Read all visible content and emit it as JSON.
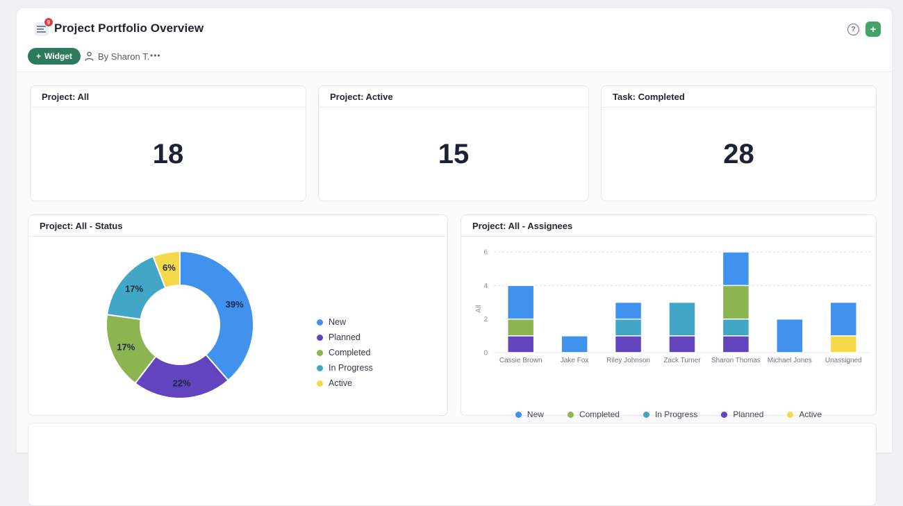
{
  "header": {
    "title": "Project Portfolio Overview",
    "badge_count": "9",
    "widget_button_label": "Widget",
    "widget_button_plus": "+",
    "byline": "By Sharon T.",
    "more_label": "•••",
    "help_label": "?",
    "add_label": "+"
  },
  "colors": {
    "New": "#4191ef",
    "Planned": "#6344bf",
    "Completed": "#8cb450",
    "In Progress": "#42a7c6",
    "Active": "#f6d94b",
    "widget_button": "#2e7b5b",
    "add_button": "#42a567",
    "badge": "#e0393f"
  },
  "stat_cards": [
    {
      "title": "Project: All",
      "value": "18"
    },
    {
      "title": "Project: Active",
      "value": "15"
    },
    {
      "title": "Task: Completed",
      "value": "28"
    }
  ],
  "chart_data": [
    {
      "type": "pie",
      "donut": true,
      "title": "Project: All - Status",
      "slices": [
        {
          "label": "New",
          "percent": 39,
          "color": "#4191ef"
        },
        {
          "label": "Planned",
          "percent": 22,
          "color": "#6344bf"
        },
        {
          "label": "Completed",
          "percent": 17,
          "color": "#8cb450"
        },
        {
          "label": "In Progress",
          "percent": 17,
          "color": "#42a7c6"
        },
        {
          "label": "Active",
          "percent": 6,
          "color": "#f6d94b"
        }
      ],
      "data_labels": [
        "39%",
        "22%",
        "17%",
        "17%",
        "6%"
      ],
      "legend_position": "right",
      "legend": [
        "New",
        "Planned",
        "Completed",
        "In Progress",
        "Active"
      ]
    },
    {
      "type": "bar",
      "stacked": true,
      "title": "Project: All - Assignees",
      "categories": [
        "Cassie Brown",
        "Jake Fox",
        "Riley Johnson",
        "Zack Turner",
        "Sharon Thomas",
        "Michael Jones",
        "Unassigned"
      ],
      "series": [
        {
          "name": "Planned",
          "color": "#6344bf",
          "values": [
            1,
            0,
            1,
            1,
            1,
            0,
            0
          ]
        },
        {
          "name": "In Progress",
          "color": "#42a7c6",
          "values": [
            0,
            0,
            1,
            2,
            1,
            0,
            0
          ]
        },
        {
          "name": "Completed",
          "color": "#8cb450",
          "values": [
            1,
            0,
            0,
            0,
            2,
            0,
            0
          ]
        },
        {
          "name": "Active",
          "color": "#f6d94b",
          "values": [
            0,
            0,
            0,
            0,
            0,
            0,
            1
          ]
        },
        {
          "name": "New",
          "color": "#4191ef",
          "values": [
            2,
            1,
            1,
            0,
            2,
            2,
            2
          ]
        }
      ],
      "totals": [
        4,
        1,
        3,
        3,
        6,
        2,
        3
      ],
      "ylabel": "All",
      "yticks": [
        0,
        2,
        4,
        6
      ],
      "ylim": [
        0,
        6
      ],
      "gridlines_at": [
        4,
        6
      ],
      "grid": "dashed",
      "legend_position": "bottom",
      "legend_order": [
        "New",
        "Completed",
        "In Progress",
        "Planned",
        "Active"
      ]
    }
  ]
}
